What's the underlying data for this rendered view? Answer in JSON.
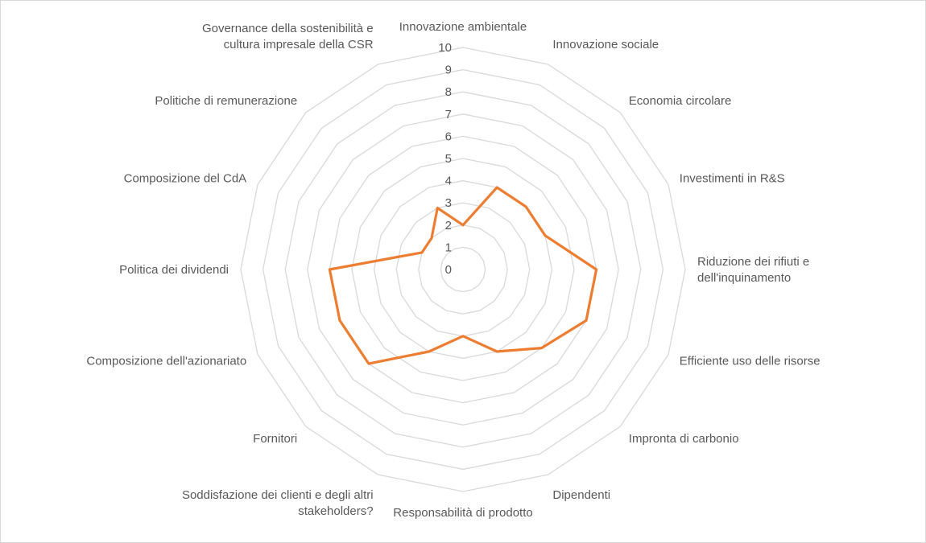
{
  "chart_data": {
    "type": "radar",
    "title": "",
    "categories": [
      "Innovazione ambientale",
      "Innovazione sociale",
      "Economia circolare",
      "Investimenti in R&S",
      "Riduzione dei rifiuti e dell'inquinamento",
      "Efficiente uso delle risorse",
      "Impronta di carbonio",
      "Dipendenti",
      "Responsabilità di prodotto",
      "Soddisfazione dei clienti e degli altri stakeholders?",
      "Fornitori",
      "Composizione dell'azionariato",
      "Politica dei dividendi",
      "Composizione del CdA",
      "Politiche di remunerazione",
      "Governance della sostenibilità e cultura impresale della CSR"
    ],
    "category_lines": [
      [
        "Innovazione ambientale"
      ],
      [
        "Innovazione sociale"
      ],
      [
        "Economia circolare"
      ],
      [
        "Investimenti in R&S"
      ],
      [
        "Riduzione dei rifiuti e",
        "dell'inquinamento"
      ],
      [
        "Efficiente uso delle risorse"
      ],
      [
        "Impronta di carbonio"
      ],
      [
        "Dipendenti"
      ],
      [
        "Responsabilità di prodotto"
      ],
      [
        "Soddisfazione dei clienti e degli altri",
        "stakeholders?"
      ],
      [
        "Fornitori"
      ],
      [
        "Composizione dell'azionariato"
      ],
      [
        "Politica dei dividendi"
      ],
      [
        "Composizione del CdA"
      ],
      [
        "Politiche di remunerazione"
      ],
      [
        "Governance della sostenibilità e",
        "cultura impresale della CSR"
      ]
    ],
    "series": [
      {
        "values": [
          2,
          4,
          4,
          4,
          6,
          6,
          5,
          4,
          3,
          4,
          6,
          6,
          6,
          2,
          2,
          3
        ],
        "color": "#ed7d31"
      }
    ],
    "rlim": [
      0,
      10
    ],
    "ticks": [
      "0",
      "1",
      "2",
      "3",
      "4",
      "5",
      "6",
      "7",
      "8",
      "9",
      "10"
    ],
    "grid": true,
    "grid_color": "#d9d9d9",
    "legend": "none"
  }
}
